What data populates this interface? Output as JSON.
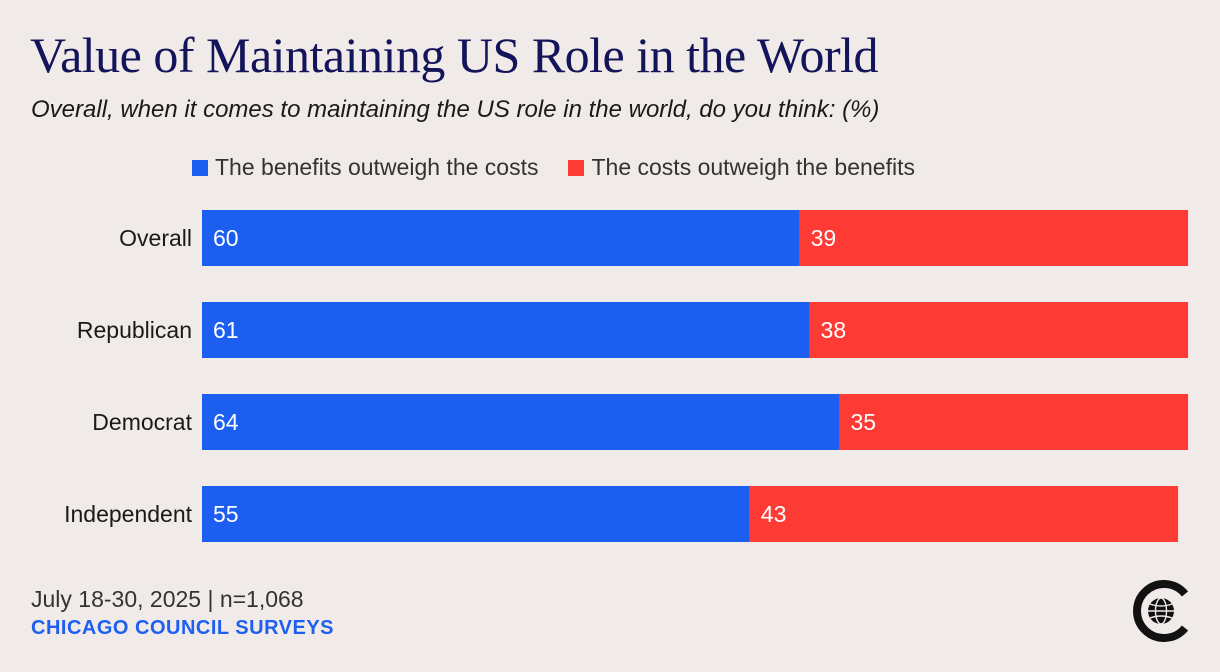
{
  "header": {
    "title": "Value of Maintaining US Role in the World",
    "subtitle": "Overall, when it comes to maintaining the US role in the world, do you think: (%)"
  },
  "legend": {
    "benefits": "The benefits outweigh the costs",
    "costs": "The costs outweigh the benefits"
  },
  "colors": {
    "benefits": "#1b5ef0",
    "costs": "#fe3a35",
    "background": "#f0ebe8",
    "title": "#14145a"
  },
  "chart_data": {
    "type": "bar",
    "orientation": "horizontal",
    "stacked": true,
    "categories": [
      "Overall",
      "Republican",
      "Democrat",
      "Independent"
    ],
    "series": [
      {
        "name": "The benefits outweigh the costs",
        "values": [
          60,
          61,
          64,
          55
        ]
      },
      {
        "name": "The costs outweigh the benefits",
        "values": [
          39,
          38,
          35,
          43
        ]
      }
    ],
    "xlim": [
      0,
      100
    ],
    "grid": false,
    "legend_position": "top"
  },
  "footer": {
    "date": "July 18-30, 2025 | n=1,068",
    "source": "CHICAGO COUNCIL SURVEYS"
  },
  "logo": {
    "icon": "chicago-council-globe-icon"
  }
}
